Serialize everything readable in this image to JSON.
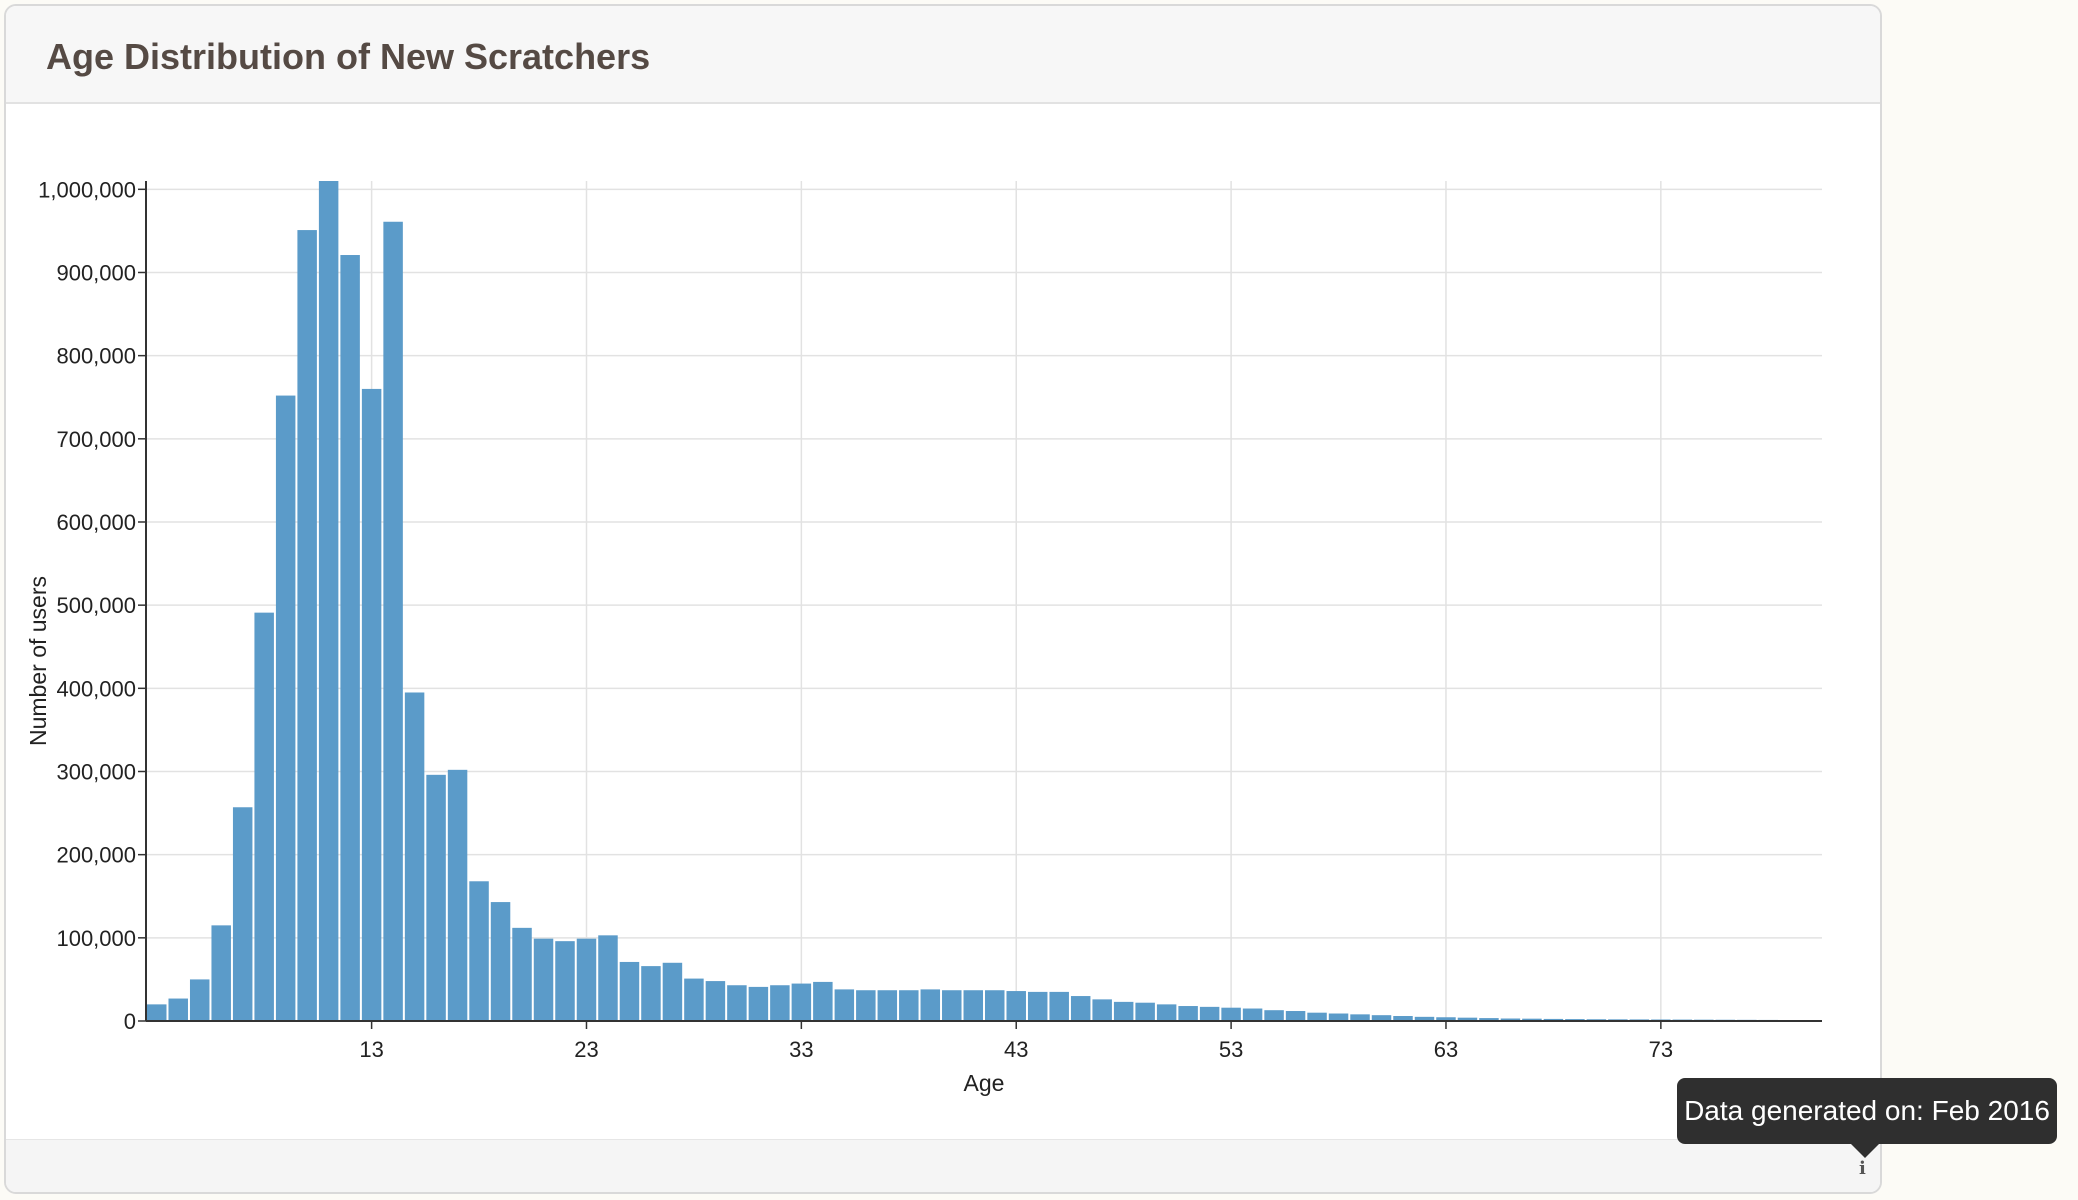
{
  "panel": {
    "title": "Age Distribution of New Scratchers"
  },
  "tooltip": {
    "text": "Data generated on: Feb 2016"
  },
  "info_icon": "info-icon",
  "colors": {
    "bar": "#5b9bc9",
    "grid": "#e2e2e2",
    "axis": "#333333",
    "tooltip_bg": "#2f2f2f"
  },
  "chart_data": {
    "type": "bar",
    "title": "",
    "xlabel": "Age",
    "ylabel": "Number of users",
    "x": [
      3,
      4,
      5,
      6,
      7,
      8,
      9,
      10,
      11,
      12,
      13,
      14,
      15,
      16,
      17,
      18,
      19,
      20,
      21,
      22,
      23,
      24,
      25,
      26,
      27,
      28,
      29,
      30,
      31,
      32,
      33,
      34,
      35,
      36,
      37,
      38,
      39,
      40,
      41,
      42,
      43,
      44,
      45,
      46,
      47,
      48,
      49,
      50,
      51,
      52,
      53,
      54,
      55,
      56,
      57,
      58,
      59,
      60,
      61,
      62,
      63,
      64,
      65,
      66,
      67,
      68,
      69,
      70,
      71,
      72,
      73,
      74,
      75,
      76,
      77,
      78,
      79,
      80
    ],
    "values": [
      20000,
      27000,
      50000,
      115000,
      257000,
      491000,
      752000,
      951000,
      1010000,
      921000,
      760000,
      961000,
      395000,
      296000,
      302000,
      168000,
      143000,
      112000,
      99000,
      96000,
      99000,
      103000,
      71000,
      66000,
      70000,
      51000,
      48000,
      43000,
      41000,
      43000,
      45000,
      47000,
      38000,
      37000,
      37000,
      37000,
      38000,
      37000,
      37000,
      37000,
      36000,
      35000,
      35000,
      30000,
      26000,
      23000,
      22000,
      20000,
      18000,
      17000,
      16000,
      15000,
      13000,
      12000,
      10000,
      9000,
      8000,
      7000,
      6000,
      5000,
      4500,
      4000,
      3500,
      3000,
      2800,
      2500,
      2300,
      2100,
      2000,
      1900,
      1800,
      1700,
      1600,
      1500,
      1400,
      1300,
      1200,
      1100
    ],
    "x_ticks": [
      "13",
      "23",
      "33",
      "43",
      "53",
      "63",
      "73"
    ],
    "y_ticks": [
      "0",
      "100,000",
      "200,000",
      "300,000",
      "400,000",
      "500,000",
      "600,000",
      "700,000",
      "800,000",
      "900,000",
      "1,000,000"
    ],
    "ylim": [
      0,
      1010000
    ],
    "xlim": [
      2.5,
      80.5
    ],
    "grid": true,
    "legend": "none"
  }
}
